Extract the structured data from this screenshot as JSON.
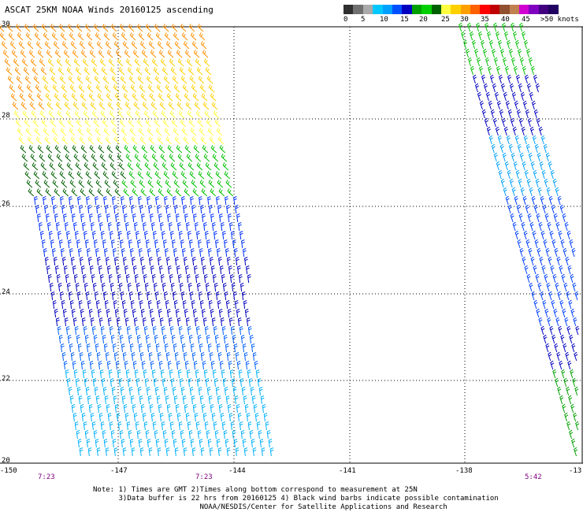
{
  "title": "ASCAT 25KM NOAA Winds 20160125 ascending",
  "legend": {
    "colors": [
      "#2f2f2f",
      "#707070",
      "#aaaaaa",
      "#00c8ff",
      "#00a0ff",
      "#0050ff",
      "#0000c0",
      "#00a000",
      "#00d000",
      "#006000",
      "#ffff40",
      "#ffd000",
      "#ffa000",
      "#ff6000",
      "#ff0000",
      "#c00000",
      "#905030",
      "#c08050",
      "#d000d0",
      "#8000c0",
      "#400080",
      "#200060"
    ],
    "labels": [
      "0",
      "5",
      "10",
      "15",
      "20",
      "25",
      "30",
      "35",
      "40",
      "45",
      ">50 knots"
    ]
  },
  "lat_labels": [
    "30",
    "28",
    "26",
    "24",
    "22",
    "20"
  ],
  "lon_labels": [
    "-150",
    "-147",
    "-144",
    "-141",
    "-138",
    "-13"
  ],
  "time_labels": [
    "7:23",
    "7:23",
    "5:42"
  ],
  "notes": [
    "Note: 1) Times are GMT 2)Times along bottom correspond to measurement at 25N",
    "      3)Data buffer is 22 hrs from 20160125 4) Black wind barbs indicate possible contamination",
    "                         NOAA/NESDIS/Center for Satellite Applications and Research"
  ]
}
